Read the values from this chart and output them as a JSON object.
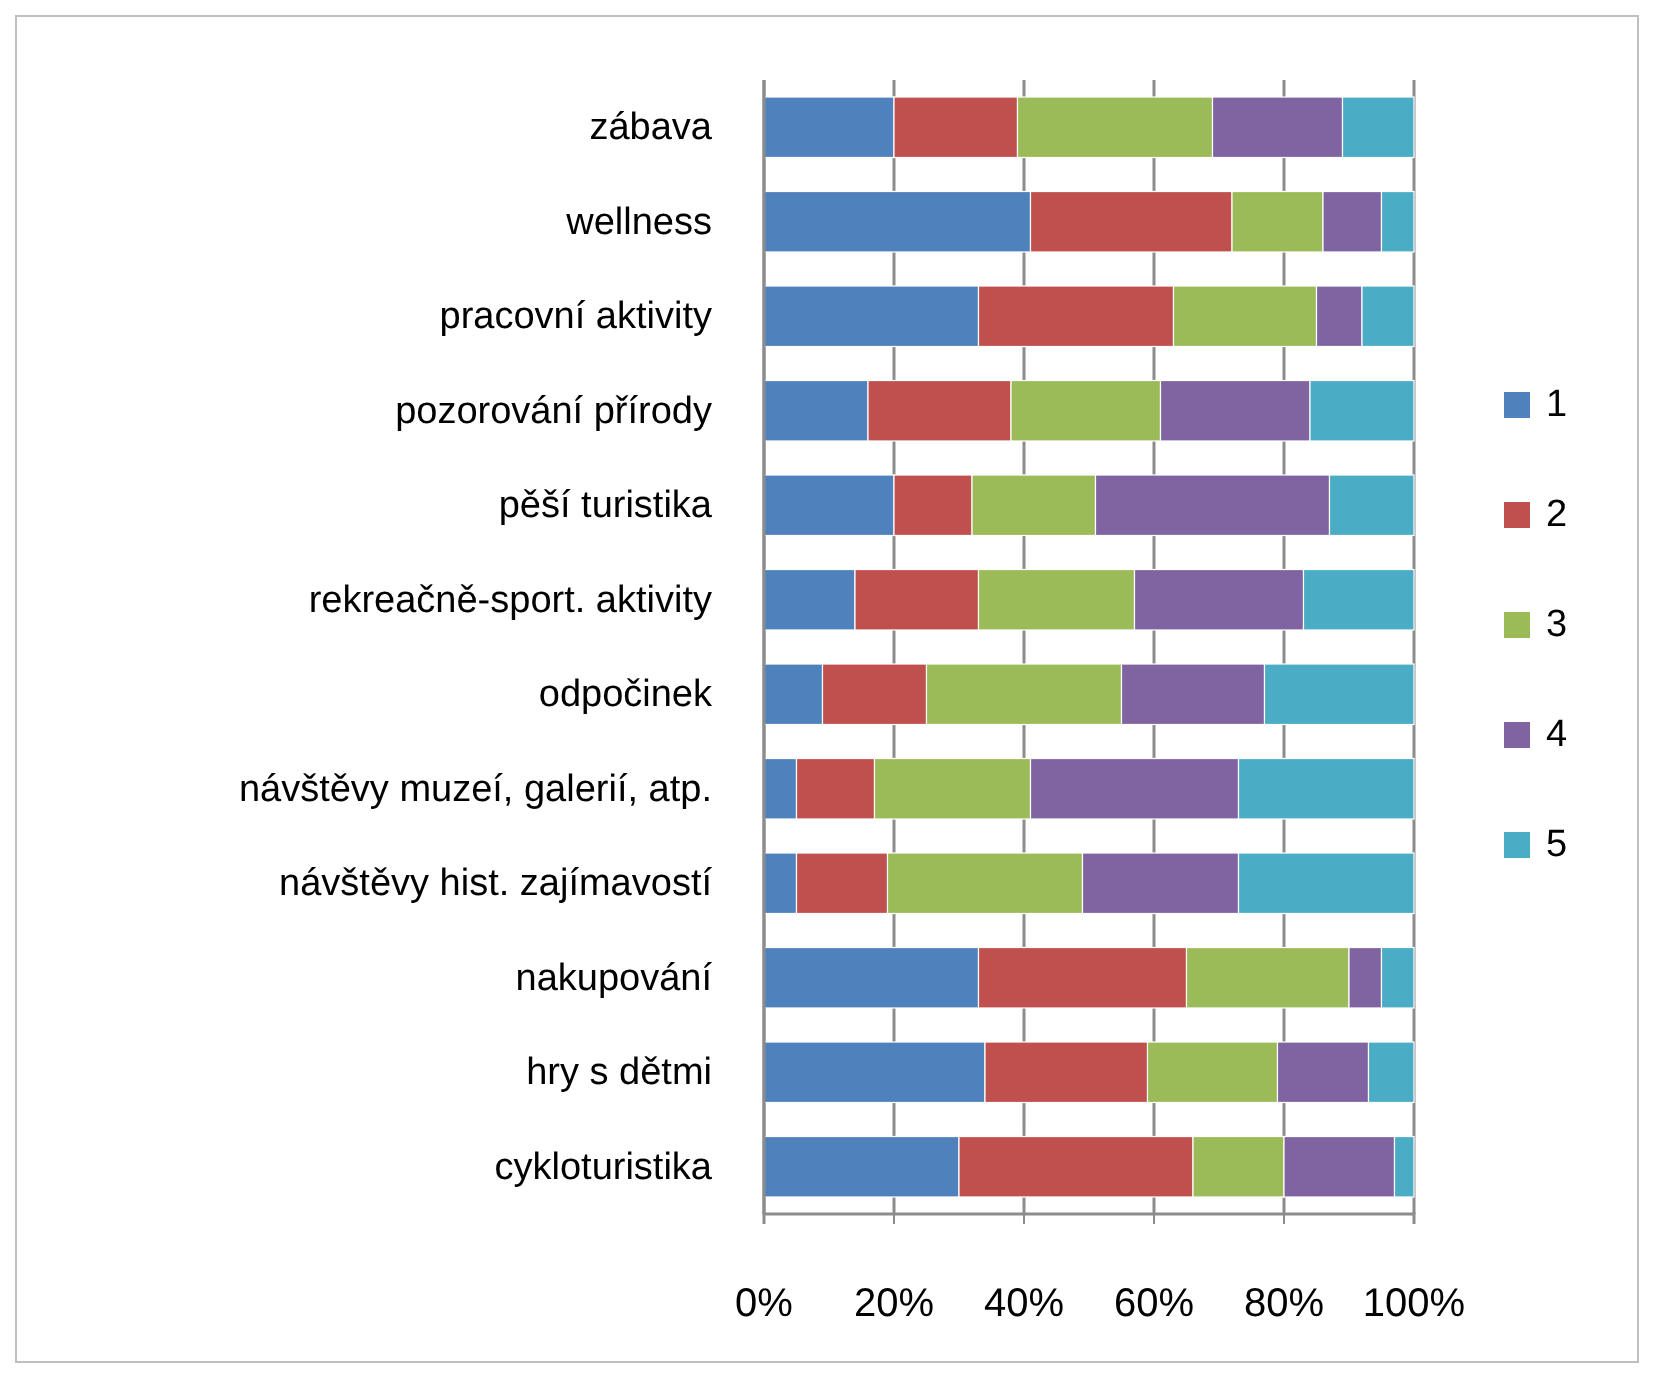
{
  "chart_data": {
    "type": "bar",
    "orientation": "horizontal",
    "stacked": true,
    "categories": [
      "zábava",
      "wellness",
      "pracovní aktivity",
      "pozorování přírody",
      "pěší turistika",
      "rekreačně-sport. aktivity",
      "odpočinek",
      "návštěvy muzeí, galerií, atp.",
      "návštěvy hist. zajímavostí",
      "nakupování",
      "hry s dětmi",
      "cykloturistika"
    ],
    "series": [
      {
        "name": "1",
        "color": "#4f81bd",
        "values": [
          20,
          41,
          33,
          16,
          20,
          14,
          9,
          5,
          5,
          33,
          34,
          30
        ]
      },
      {
        "name": "2",
        "color": "#c0504d",
        "values": [
          19,
          31,
          30,
          22,
          12,
          19,
          16,
          12,
          14,
          32,
          25,
          36
        ]
      },
      {
        "name": "3",
        "color": "#9bbb59",
        "values": [
          30,
          14,
          22,
          23,
          19,
          24,
          30,
          24,
          30,
          25,
          20,
          14
        ]
      },
      {
        "name": "4",
        "color": "#8064a2",
        "values": [
          20,
          9,
          7,
          23,
          36,
          26,
          22,
          32,
          24,
          5,
          14,
          17
        ]
      },
      {
        "name": "5",
        "color": "#4bacc6",
        "values": [
          11,
          5,
          8,
          16,
          13,
          17,
          23,
          27,
          27,
          5,
          7,
          3
        ]
      }
    ],
    "xlim": [
      0,
      100
    ],
    "xticks": [
      {
        "value": 0,
        "label": "0%"
      },
      {
        "value": 20,
        "label": "20%"
      },
      {
        "value": 40,
        "label": "40%"
      },
      {
        "value": 60,
        "label": "60%"
      },
      {
        "value": 80,
        "label": "80%"
      },
      {
        "value": 100,
        "label": "100%"
      }
    ],
    "grid": "x",
    "legend": "right"
  }
}
